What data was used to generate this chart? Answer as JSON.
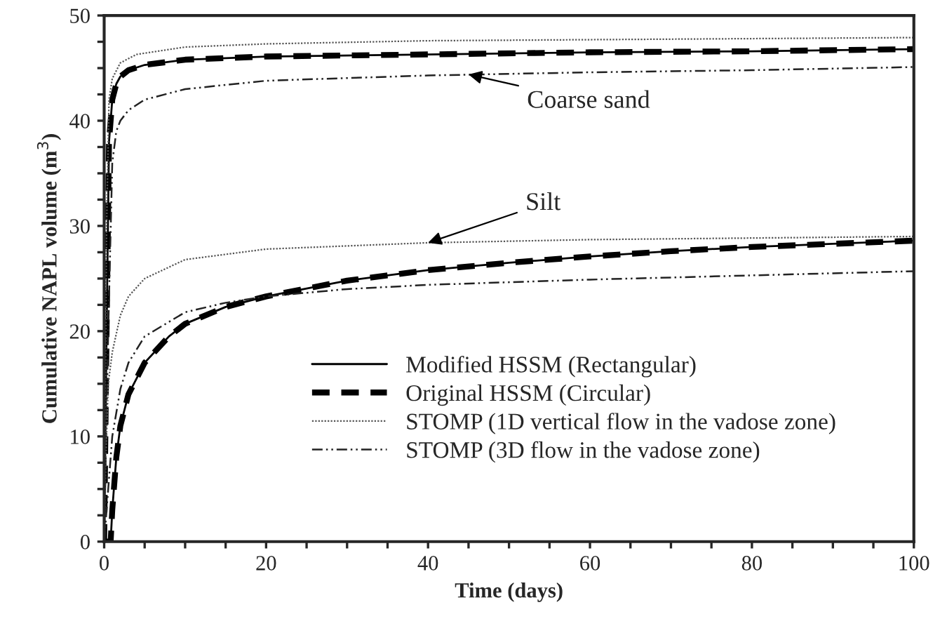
{
  "chart_data": {
    "type": "line",
    "xlabel": "Time (days)",
    "ylabel": "Cumulative NAPL volume (m$^{3}$)",
    "xlim": [
      0,
      100
    ],
    "ylim": [
      0,
      50
    ],
    "xticks": [
      0,
      {
        "value": 5,
        "label": null
      },
      {
        "value": 10,
        "label": null
      },
      {
        "value": 15,
        "label": null
      },
      20,
      {
        "value": 25,
        "label": null
      },
      {
        "value": 30,
        "label": null
      },
      {
        "value": 35,
        "label": null
      },
      40,
      {
        "value": 45,
        "label": null
      },
      {
        "value": 50,
        "label": null
      },
      {
        "value": 55,
        "label": null
      },
      60,
      {
        "value": 65,
        "label": null
      },
      {
        "value": 70,
        "label": null
      },
      {
        "value": 75,
        "label": null
      },
      80,
      {
        "value": 85,
        "label": null
      },
      {
        "value": 90,
        "label": null
      },
      {
        "value": 95,
        "label": null
      },
      100
    ],
    "yticks": [
      0,
      {
        "value": 2.5,
        "label": null
      },
      {
        "value": 5,
        "label": null
      },
      {
        "value": 7.5,
        "label": null
      },
      10,
      {
        "value": 12.5,
        "label": null
      },
      {
        "value": 15,
        "label": null
      },
      {
        "value": 17.5,
        "label": null
      },
      20,
      {
        "value": 22.5,
        "label": null
      },
      {
        "value": 25,
        "label": null
      },
      {
        "value": 27.5,
        "label": null
      },
      30,
      {
        "value": 32.5,
        "label": null
      },
      {
        "value": 35,
        "label": null
      },
      {
        "value": 37.5,
        "label": null
      },
      40,
      {
        "value": 42.5,
        "label": null
      },
      {
        "value": 45,
        "label": null
      },
      {
        "value": 47.5,
        "label": null
      },
      50
    ],
    "grid": false,
    "legend": "bottom right",
    "marker": "none",
    "annotations": [
      {
        "text": "Coarse sand",
        "x": 45,
        "y": 44.4
      },
      {
        "text": "Silt",
        "x": 40,
        "y": 28.4
      }
    ],
    "series": [
      {
        "name": "Modified HSSM (Rectangular)",
        "color": "#000000",
        "line_style": "solid",
        "x": [
          0,
          0.3,
          0.6,
          1,
          1.5,
          2,
          3,
          5,
          10,
          20,
          40,
          60,
          80,
          100
        ],
        "values": [
          0,
          20,
          38,
          42,
          43.5,
          44.2,
          44.8,
          45.3,
          45.8,
          46.1,
          46.3,
          46.5,
          46.6,
          46.8
        ]
      },
      {
        "name": "Original HSSM (Circular)",
        "color": "#000000",
        "line_style": "dashed",
        "x": [
          0,
          0.3,
          0.6,
          1,
          1.5,
          2,
          3,
          5,
          10,
          20,
          40,
          60,
          80,
          100
        ],
        "values": [
          0,
          20,
          38,
          42,
          43.5,
          44.2,
          44.8,
          45.3,
          45.8,
          46.1,
          46.3,
          46.5,
          46.6,
          46.8
        ]
      },
      {
        "name": "STOMP (1D vertical flow in the vadose zone)",
        "color": "#555555",
        "line_style": "dotted",
        "x": [
          0,
          0.3,
          0.6,
          1,
          2,
          4,
          10,
          20,
          40,
          60,
          100
        ],
        "values": [
          0,
          30,
          42,
          44,
          45.5,
          46.3,
          47,
          47.3,
          47.6,
          47.7,
          47.9
        ]
      },
      {
        "name": "STOMP (3D flow in the vadose zone)",
        "color": "#222222",
        "line_style": "dashdot",
        "x": [
          0,
          0.5,
          1,
          1.5,
          2,
          3,
          5,
          10,
          20,
          40,
          60,
          80,
          100
        ],
        "values": [
          0,
          20,
          36,
          39,
          40,
          41,
          42,
          43,
          43.8,
          44.3,
          44.6,
          44.8,
          45.1
        ]
      },
      {
        "color": "#000000",
        "line_style": "solid",
        "x": [
          0,
          0.8,
          1,
          1.5,
          2,
          3,
          5,
          8,
          10,
          15,
          20,
          30,
          40,
          50,
          60,
          70,
          80,
          90,
          100
        ],
        "values": [
          0,
          0,
          3,
          8,
          11,
          14,
          17,
          19.5,
          20.7,
          22.3,
          23.3,
          24.8,
          25.8,
          26.5,
          27.1,
          27.6,
          28,
          28.3,
          28.6
        ]
      },
      {
        "color": "#000000",
        "line_style": "dashed",
        "x": [
          0,
          0.8,
          1,
          1.5,
          2,
          3,
          5,
          8,
          10,
          15,
          20,
          30,
          40,
          50,
          60,
          70,
          80,
          90,
          100
        ],
        "values": [
          0,
          0,
          3,
          8,
          11,
          14,
          17,
          19.5,
          20.7,
          22.3,
          23.3,
          24.8,
          25.8,
          26.5,
          27.1,
          27.6,
          28,
          28.3,
          28.6
        ]
      },
      {
        "color": "#555555",
        "line_style": "dotted",
        "x": [
          0,
          0.2,
          0.5,
          1,
          2,
          3,
          5,
          10,
          20,
          40,
          60,
          100
        ],
        "values": [
          0,
          8,
          15,
          18,
          21.5,
          23.3,
          25,
          26.8,
          27.8,
          28.4,
          28.7,
          29.0
        ]
      },
      {
        "color": "#222222",
        "line_style": "dashdot",
        "x": [
          0,
          0.5,
          1,
          2,
          3,
          5,
          10,
          15,
          20,
          30,
          40,
          60,
          80,
          100
        ],
        "values": [
          0,
          5,
          10,
          14.5,
          17,
          19.5,
          21.8,
          22.7,
          23.3,
          24,
          24.4,
          24.9,
          25.3,
          25.7
        ]
      }
    ]
  }
}
